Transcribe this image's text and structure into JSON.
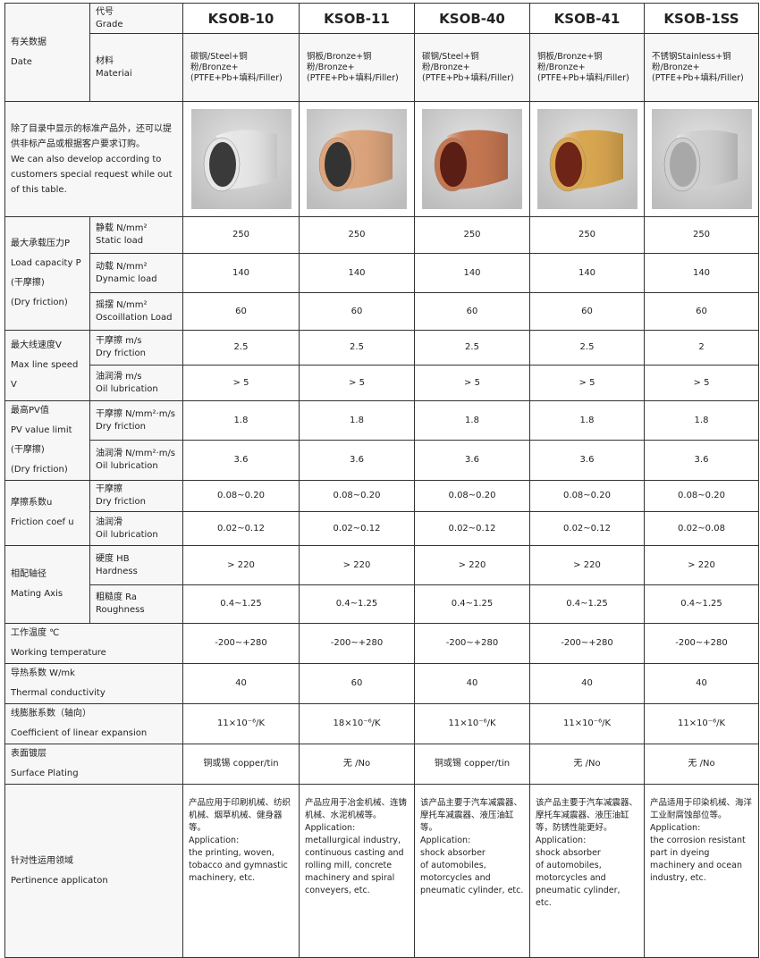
{
  "header": {
    "data_cn": "有关数据",
    "data_en": "Date",
    "grade_cn": "代号",
    "grade_en": "Grade",
    "material_cn": "材料",
    "material_en": "Materiai",
    "note": [
      "除了目录中显示的标准产品外，还可以提供非标产品或根据客户要求订购。",
      "We can also develop according to customers special request while out of this  table."
    ]
  },
  "products": [
    {
      "grade": "KSOB-10",
      "material": "碳钢/Steel+铜粉/Bronze+(PTFE+Pb+填料/Filler)",
      "outer_color": "#e6e6e6",
      "inner_color": "#3a3a3a"
    },
    {
      "grade": "KSOB-11",
      "material": "铜板/Bronze+铜粉/Bronze+(PTFE+Pb+填料/Filler)",
      "outer_color": "#dca47c",
      "inner_color": "#333333"
    },
    {
      "grade": "KSOB-40",
      "material": "碳钢/Steel+铜粉/Bronze+(PTFE+Pb+填料/Filler)",
      "outer_color": "#c47650",
      "inner_color": "#5a1e14"
    },
    {
      "grade": "KSOB-41",
      "material": "铜板/Bronze+铜粉/Bronze+(PTFE+Pb+填料/Filler)",
      "outer_color": "#d8a650",
      "inner_color": "#6e2416"
    },
    {
      "grade": "KSOB-1SS",
      "material": "不锈钢Stainless+铜粉/Bronze+(PTFE+Pb+填料/Filler)",
      "outer_color": "#cfcfcf",
      "inner_color": "#a8a8a8"
    }
  ],
  "groups": [
    {
      "label": [
        "最大承载压力P",
        "Load capacity P",
        "(干摩擦)",
        "(Dry friction)"
      ],
      "rows": [
        {
          "cn": "静载 N/mm²",
          "en": "Static load",
          "values": [
            "250",
            "250",
            "250",
            "250",
            "250"
          ]
        },
        {
          "cn": "动载 N/mm²",
          "en": "Dynamic load",
          "values": [
            "140",
            "140",
            "140",
            "140",
            "140"
          ]
        },
        {
          "cn": "摇摆 N/mm²",
          "en": "Oscoillation Load",
          "values": [
            "60",
            "60",
            "60",
            "60",
            "60"
          ]
        }
      ]
    },
    {
      "label": [
        "最大线速度V",
        "Max line speed V"
      ],
      "rows": [
        {
          "cn": "干摩擦 m/s",
          "en": "Dry friction",
          "values": [
            "2.5",
            "2.5",
            "2.5",
            "2.5",
            "2"
          ]
        },
        {
          "cn": "油润滑 m/s",
          "en": "Oil lubrication",
          "values": [
            "> 5",
            "> 5",
            "> 5",
            "> 5",
            "> 5"
          ]
        }
      ]
    },
    {
      "label": [
        "最高PV值",
        "PV value limit",
        "(干摩擦)",
        "(Dry friction)"
      ],
      "rows": [
        {
          "cn": "干摩擦 N/mm²·m/s",
          "en": "Dry friction",
          "values": [
            "1.8",
            "1.8",
            "1.8",
            "1.8",
            "1.8"
          ]
        },
        {
          "cn": "油润滑 N/mm²·m/s",
          "en": "Oil lubrication",
          "values": [
            "3.6",
            "3.6",
            "3.6",
            "3.6",
            "3.6"
          ]
        }
      ]
    },
    {
      "label": [
        "摩擦系数u",
        "Friction coef u"
      ],
      "rows": [
        {
          "cn": "干摩擦",
          "en": "Dry friction",
          "values": [
            "0.08~0.20",
            "0.08~0.20",
            "0.08~0.20",
            "0.08~0.20",
            "0.08~0.20"
          ]
        },
        {
          "cn": "油润滑",
          "en": "Oil lubrication",
          "values": [
            "0.02~0.12",
            "0.02~0.12",
            "0.02~0.12",
            "0.02~0.12",
            "0.02~0.08"
          ]
        }
      ]
    },
    {
      "label": [
        "相配轴径",
        "Mating Axis"
      ],
      "rows": [
        {
          "cn": "硬度 HB",
          "en": "Hardness",
          "values": [
            "> 220",
            "> 220",
            "> 220",
            "> 220",
            "> 220"
          ]
        },
        {
          "cn": "粗糙度 Ra",
          "en": "Roughness",
          "values": [
            "0.4~1.25",
            "0.4~1.25",
            "0.4~1.25",
            "0.4~1.25",
            "0.4~1.25"
          ]
        }
      ]
    }
  ],
  "full_rows": [
    {
      "cn": "工作温度  ℃",
      "en": "Working temperature",
      "values": [
        "-200~+280",
        "-200~+280",
        "-200~+280",
        "-200~+280",
        "-200~+280"
      ]
    },
    {
      "cn": "导热系数 W/mk",
      "en": "Thermal conductivity",
      "values": [
        "40",
        "60",
        "40",
        "40",
        "40"
      ]
    },
    {
      "cn": "线膨胀系数（轴向）",
      "en": "Coefficient of linear expansion",
      "values": [
        "11×10⁻⁶/K",
        "18×10⁻⁶/K",
        "11×10⁻⁶/K",
        "11×10⁻⁶/K",
        "11×10⁻⁶/K"
      ]
    },
    {
      "cn": "表面镀层",
      "en": "Surface Plating",
      "values": [
        "铜或锡 copper/tin",
        "无 /No",
        "铜或锡 copper/tin",
        "无 /No",
        "无 /No"
      ]
    }
  ],
  "application": {
    "cn": "针对性运用领域",
    "en": "Pertinence applicaton",
    "values": [
      "产品应用于印刷机械、纺织机械、烟草机械、健身器等。\nApplication:\nthe printing, woven, tobacco and gymnastic machinery, etc.",
      "产品应用于冶金机械、连铸机械、水泥机械等。\nApplication:\nmetallurgical industry, continuous casting and rolling mill, concrete machinery and spiral conveyers, etc.",
      "该产品主要于汽车减震器、摩托车减震器、液压油缸等。\nApplication:\nshock absorber\nof automobiles, motorcycles and\npneumatic cylinder, etc.",
      "该产品主要于汽车减震器、摩托车减震器、液压油缸等，防锈性能更好。\nApplication:\nshock absorber\nof automobiles, motorcycles and\npneumatic cylinder, etc.",
      "产品适用于印染机械、海洋工业耐腐蚀部位等。\nApplication:\n the corrosion resistant part in dyeing machinery and ocean industry, etc."
    ]
  }
}
